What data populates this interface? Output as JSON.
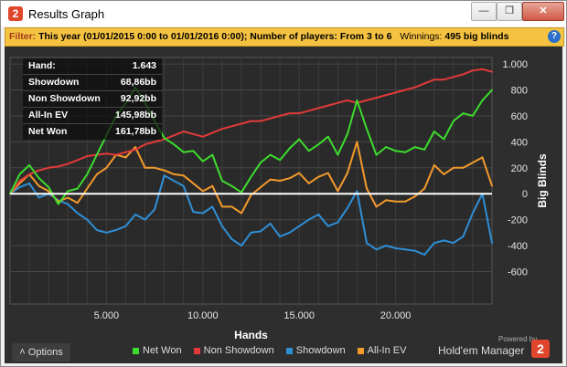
{
  "window": {
    "title": "Results Graph",
    "icon_label": "2",
    "buttons": [
      "minimize-icon",
      "restore-icon",
      "close-icon"
    ]
  },
  "filter": {
    "label": "Filter:",
    "text": "This year (01/01/2015 0:00 to 01/01/2016 0:00); Number of players: From 3 to 6",
    "winnings_label": "Winnings:",
    "winnings_value": "495 big blinds",
    "help_icon": "?"
  },
  "stats": {
    "rows": [
      {
        "label": "Hand:",
        "value": "1.643"
      },
      {
        "label": "Showdown",
        "value": "68,86bb"
      },
      {
        "label": "Non Showdown",
        "value": "92,92bb"
      },
      {
        "label": "All-In EV",
        "value": "145,98bb"
      },
      {
        "label": "Net Won",
        "value": "161,78bb"
      }
    ]
  },
  "options_label": "Options",
  "legend": [
    {
      "label": "Net Won",
      "color": "#3ddc2e"
    },
    {
      "label": "Non Showdown",
      "color": "#e23a3a"
    },
    {
      "label": "Showdown",
      "color": "#2f8fd6"
    },
    {
      "label": "All-In EV",
      "color": "#f39a2c"
    }
  ],
  "branding": {
    "powered_by": "Powered by",
    "name": "Hold'em Manager",
    "logo": "2"
  },
  "chart_data": {
    "type": "line",
    "xlabel": "Hands",
    "ylabel": "Big Blinds",
    "xlim": [
      0,
      25000
    ],
    "ylim": [
      -850,
      1050
    ],
    "x_ticks": [
      5000,
      10000,
      15000,
      20000
    ],
    "x_tick_labels": [
      "5.000",
      "10.000",
      "15.000",
      "20.000"
    ],
    "y_ticks": [
      -600,
      -400,
      -200,
      0,
      200,
      400,
      600,
      800,
      1000
    ],
    "y_tick_labels": [
      "-600",
      "-400",
      "-200",
      "0",
      "200",
      "400",
      "600",
      "800",
      "1.000"
    ],
    "grid": true,
    "legend_position": "bottom",
    "x": [
      0,
      500,
      1000,
      1500,
      2000,
      2500,
      3000,
      3500,
      4000,
      4500,
      5000,
      5500,
      6000,
      6500,
      7000,
      7500,
      8000,
      8500,
      9000,
      9500,
      10000,
      10500,
      11000,
      11500,
      12000,
      12500,
      13000,
      13500,
      14000,
      14500,
      15000,
      15500,
      16000,
      16500,
      17000,
      17500,
      18000,
      18500,
      19000,
      19500,
      20000,
      20500,
      21000,
      21500,
      22000,
      22500,
      23000,
      23500,
      24000,
      24500,
      25000
    ],
    "series": [
      {
        "name": "Net Won",
        "color": "#3ddc2e",
        "values": [
          0,
          150,
          220,
          120,
          50,
          -80,
          20,
          40,
          150,
          300,
          450,
          600,
          700,
          820,
          700,
          560,
          430,
          380,
          320,
          330,
          250,
          300,
          100,
          60,
          10,
          130,
          240,
          300,
          260,
          350,
          420,
          330,
          380,
          440,
          300,
          460,
          720,
          500,
          300,
          360,
          330,
          320,
          360,
          340,
          480,
          420,
          560,
          620,
          600,
          720,
          800
        ]
      },
      {
        "name": "Non Showdown",
        "color": "#e23a3a",
        "values": [
          0,
          100,
          150,
          180,
          200,
          210,
          230,
          260,
          290,
          300,
          310,
          300,
          320,
          340,
          380,
          400,
          420,
          450,
          480,
          460,
          440,
          470,
          500,
          520,
          540,
          560,
          560,
          580,
          600,
          620,
          620,
          640,
          660,
          680,
          700,
          720,
          700,
          720,
          740,
          760,
          780,
          800,
          820,
          850,
          880,
          880,
          900,
          920,
          950,
          960,
          940
        ]
      },
      {
        "name": "Showdown",
        "color": "#2f8fd6",
        "values": [
          0,
          50,
          80,
          -30,
          0,
          -50,
          -80,
          -150,
          -200,
          -280,
          -300,
          -280,
          -250,
          -160,
          -200,
          -120,
          140,
          100,
          60,
          -140,
          -150,
          -100,
          -250,
          -350,
          -400,
          -300,
          -290,
          -230,
          -330,
          -300,
          -250,
          -200,
          -160,
          -250,
          -220,
          -110,
          20,
          -380,
          -430,
          -400,
          -420,
          -430,
          -440,
          -470,
          -380,
          -360,
          -380,
          -330,
          -150,
          0,
          -380
        ]
      },
      {
        "name": "All-In EV",
        "color": "#f39a2c",
        "values": [
          0,
          80,
          150,
          60,
          20,
          -60,
          -30,
          -70,
          40,
          150,
          200,
          300,
          280,
          360,
          200,
          200,
          180,
          150,
          140,
          80,
          20,
          60,
          -100,
          -100,
          -150,
          -10,
          50,
          110,
          100,
          120,
          160,
          80,
          130,
          160,
          20,
          160,
          400,
          40,
          -100,
          -50,
          -60,
          -60,
          -20,
          40,
          220,
          150,
          200,
          200,
          240,
          280,
          60
        ]
      }
    ]
  }
}
